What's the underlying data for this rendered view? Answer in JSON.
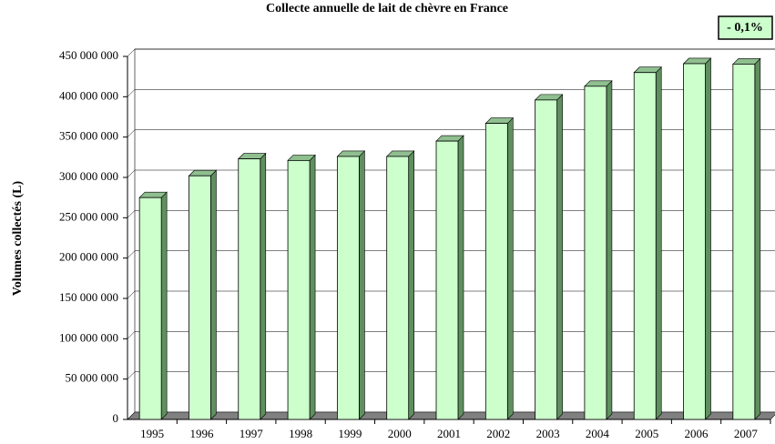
{
  "chart_data": {
    "type": "bar3d",
    "title": "Collecte annuelle de lait de chèvre en France",
    "annotation": "- 0,1%",
    "y_label": "Volumes collectés (L)",
    "categories": [
      "1995",
      "1996",
      "1997",
      "1998",
      "1999",
      "2000",
      "2001",
      "2002",
      "2003",
      "2004",
      "2005",
      "2006",
      "2007"
    ],
    "values": [
      275000000,
      302000000,
      323000000,
      321000000,
      326000000,
      326000000,
      345000000,
      367000000,
      396000000,
      413000000,
      430000000,
      441000000,
      440500000
    ],
    "color": "#ccffcc",
    "ylim": [
      0,
      450000000
    ],
    "yticks": [
      0,
      {
        "value": 50000000,
        "label": "50 000 000"
      },
      {
        "value": 100000000,
        "label": "100 000 000"
      },
      {
        "value": 150000000,
        "label": "150 000 000"
      },
      {
        "value": 200000000,
        "label": "200 000 000"
      },
      {
        "value": 250000000,
        "label": "250 000 000"
      },
      {
        "value": 300000000,
        "label": "300 000 000"
      },
      {
        "value": 350000000,
        "label": "350 000 000"
      },
      {
        "value": 400000000,
        "label": "400 000 000"
      },
      {
        "value": 450000000,
        "label": "450 000 000"
      }
    ],
    "grid": true
  }
}
